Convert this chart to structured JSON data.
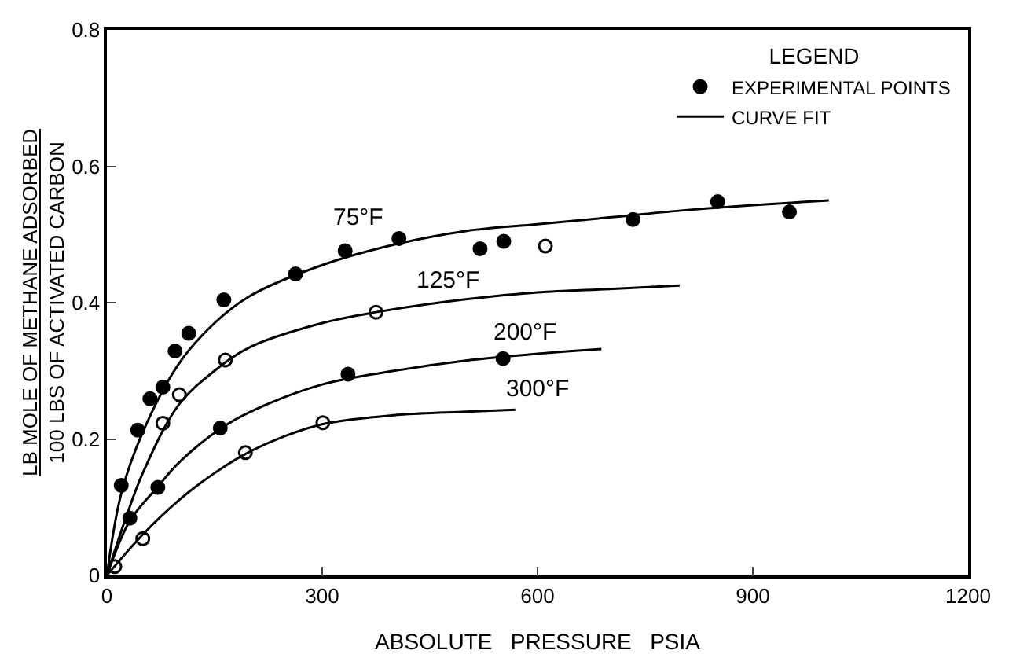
{
  "chart_data": {
    "type": "scatter",
    "xlabel": "ABSOLUTE   PRESSURE   PSIA",
    "ylabel": "LB MOLE OF METHANE ADSORBED\n100 LBS OF ACTIVATED CARBON",
    "legend_title": "LEGEND",
    "legend": "top right",
    "grid": false,
    "xlim": [
      0,
      1200
    ],
    "xticks": [
      0,
      300,
      600,
      900,
      1200
    ],
    "ylim": [
      0,
      0.8
    ],
    "yticks": [
      0,
      0.2,
      0.4,
      0.6,
      0.8
    ],
    "series": [
      {
        "name": "EXPERIMENTAL POINTS",
        "type": "scatter",
        "marker": "circle",
        "color": "#000000",
        "x": [
          20,
          43,
          60,
          78,
          95,
          114,
          163,
          263,
          332,
          407,
          520,
          553,
          733,
          851,
          951
        ],
        "values": [
          0.132,
          0.213,
          0.259,
          0.276,
          0.329,
          0.355,
          0.404,
          0.442,
          0.476,
          0.494,
          0.479,
          0.49,
          0.522,
          0.548,
          0.533
        ]
      },
      {
        "type": "scatter",
        "marker": "circle",
        "color": "#ffffff",
        "x": [
          78,
          101,
          165,
          375,
          611
        ],
        "values": [
          0.223,
          0.265,
          0.316,
          0.386,
          0.483
        ]
      },
      {
        "type": "scatter",
        "marker": "circle",
        "color": "#000000",
        "x": [
          32,
          71,
          158,
          336,
          552
        ],
        "values": [
          0.084,
          0.129,
          0.216,
          0.295,
          0.318
        ]
      },
      {
        "type": "scatter",
        "marker": "circle",
        "color": "#ffffff",
        "x": [
          11,
          50,
          193,
          301
        ],
        "values": [
          0.013,
          0.054,
          0.18,
          0.224
        ]
      },
      {
        "name": "CURVE FIT",
        "type": "line",
        "marker": "none",
        "color": "#000000",
        "x": [
          0,
          20,
          50,
          100,
          150,
          200,
          300,
          400,
          500,
          600,
          700,
          800,
          900,
          1006
        ],
        "values": [
          0,
          0.12,
          0.21,
          0.31,
          0.37,
          0.41,
          0.455,
          0.485,
          0.505,
          0.515,
          0.525,
          0.535,
          0.543,
          0.55
        ]
      },
      {
        "type": "line",
        "marker": "none",
        "color": "#000000",
        "x": [
          0,
          25,
          50,
          100,
          150,
          200,
          300,
          375,
          500,
          600,
          700,
          798
        ],
        "values": [
          0,
          0.08,
          0.15,
          0.25,
          0.3,
          0.335,
          0.37,
          0.386,
          0.405,
          0.415,
          0.42,
          0.425
        ]
      },
      {
        "type": "line",
        "marker": "none",
        "color": "#000000",
        "x": [
          0,
          32,
          71,
          100,
          158,
          200,
          300,
          400,
          500,
          600,
          689
        ],
        "values": [
          0,
          0.08,
          0.13,
          0.165,
          0.215,
          0.24,
          0.28,
          0.3,
          0.315,
          0.325,
          0.332
        ]
      },
      {
        "type": "line",
        "marker": "none",
        "color": "#000000",
        "x": [
          0,
          50,
          100,
          150,
          193,
          250,
          301,
          400,
          500,
          569
        ],
        "values": [
          0,
          0.06,
          0.11,
          0.15,
          0.178,
          0.205,
          0.222,
          0.235,
          0.24,
          0.243
        ]
      }
    ],
    "annotations": [
      "75°F",
      "125°F",
      "200°F",
      "300°F"
    ]
  }
}
